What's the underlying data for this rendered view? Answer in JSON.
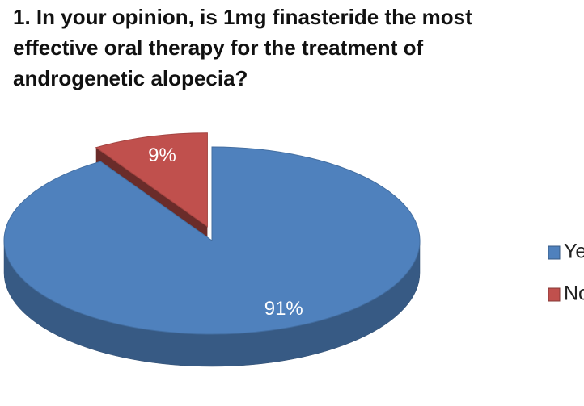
{
  "chart_data": {
    "type": "pie",
    "title": "1. In your opinion, is 1mg finasteride the most effective oral therapy for the treatment of androgenetic alopecia?",
    "categories": [
      "Yes",
      "No"
    ],
    "values": [
      91,
      9
    ],
    "value_labels": [
      "91%",
      "9%"
    ],
    "colors": [
      "#4f81bd",
      "#c0504d"
    ],
    "legend": "right"
  }
}
